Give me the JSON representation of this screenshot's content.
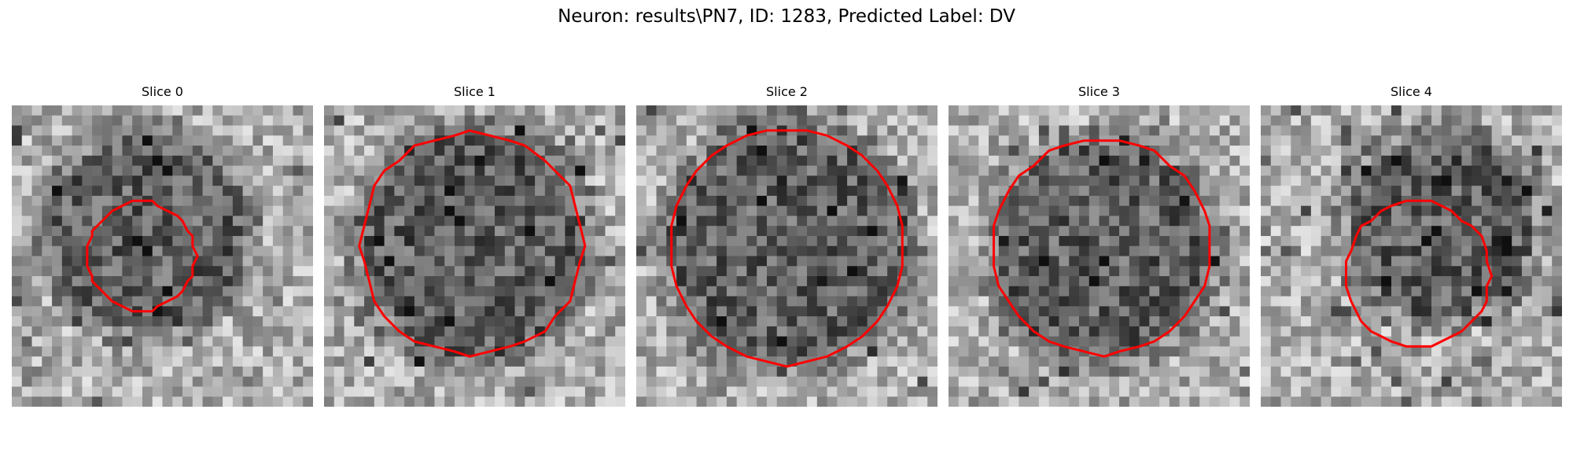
{
  "figure": {
    "title": "Neuron: results\\PN7, ID: 1283, Predicted Label: DV"
  },
  "panels": [
    {
      "title": "Slice 0",
      "seed": 11,
      "contour_center": [
        0.43,
        0.5
      ],
      "contour_radius": 0.18,
      "dark_center": [
        0.45,
        0.42
      ],
      "dark_radius": 0.33
    },
    {
      "title": "Slice 1",
      "seed": 23,
      "contour_center": [
        0.49,
        0.46
      ],
      "contour_radius": 0.37,
      "dark_center": [
        0.49,
        0.46
      ],
      "dark_radius": 0.37
    },
    {
      "title": "Slice 2",
      "seed": 37,
      "contour_center": [
        0.5,
        0.47
      ],
      "contour_radius": 0.39,
      "dark_center": [
        0.5,
        0.47
      ],
      "dark_radius": 0.39
    },
    {
      "title": "Slice 3",
      "seed": 51,
      "contour_center": [
        0.51,
        0.47
      ],
      "contour_radius": 0.36,
      "dark_center": [
        0.51,
        0.48
      ],
      "dark_radius": 0.36
    },
    {
      "title": "Slice 4",
      "seed": 67,
      "contour_center": [
        0.52,
        0.56
      ],
      "contour_radius": 0.24,
      "dark_center": [
        0.6,
        0.4
      ],
      "dark_radius": 0.3
    }
  ],
  "style": {
    "contour_color": "#ff0000",
    "colormap": "grayscale"
  }
}
